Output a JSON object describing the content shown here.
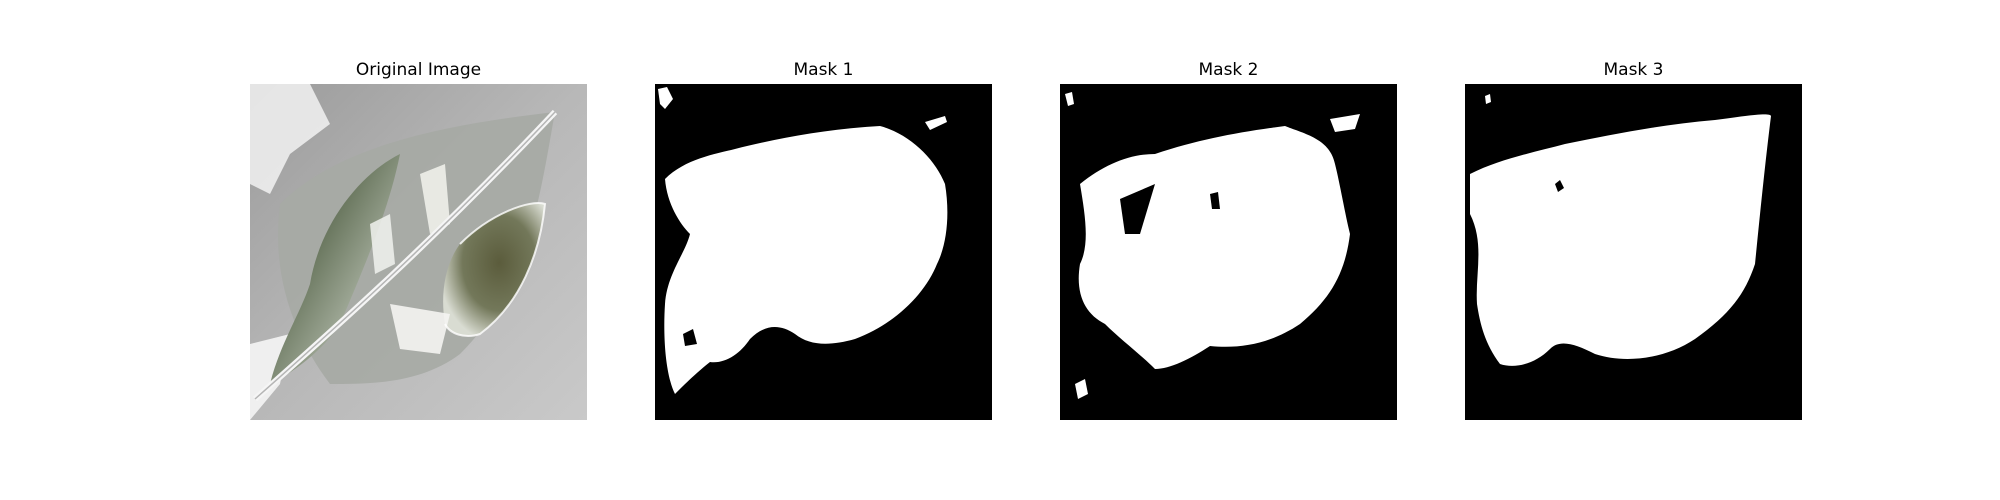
{
  "panels": [
    {
      "title": "Original Image"
    },
    {
      "title": "Mask 1"
    },
    {
      "title": "Mask 2"
    },
    {
      "title": "Mask 3"
    }
  ],
  "colors": {
    "background": "#ffffff",
    "mask_background": "#000000",
    "mask_foreground": "#ffffff",
    "photo_gray": "#b3b3b3",
    "leaf_dark": "#3b3a30",
    "leaf_green": "#6f7550"
  }
}
